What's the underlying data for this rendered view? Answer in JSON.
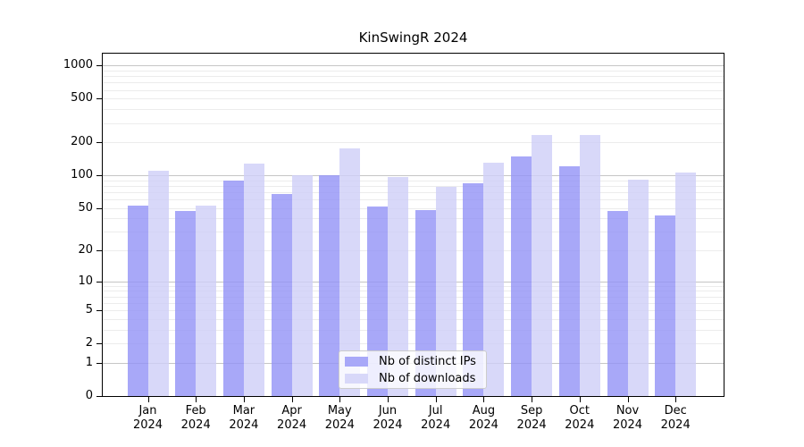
{
  "title": "KinSwingR 2024",
  "chart_data": {
    "type": "bar",
    "title": "KinSwingR 2024",
    "categories": [
      "Jan 2024",
      "Feb 2024",
      "Mar 2024",
      "Apr 2024",
      "May 2024",
      "Jun 2024",
      "Jul 2024",
      "Aug 2024",
      "Sep 2024",
      "Oct 2024",
      "Nov 2024",
      "Dec 2024"
    ],
    "months": [
      "Jan",
      "Feb",
      "Mar",
      "Apr",
      "May",
      "Jun",
      "Jul",
      "Aug",
      "Sep",
      "Oct",
      "Nov",
      "Dec"
    ],
    "year": "2024",
    "series": [
      {
        "name": "Nb of distinct IPs",
        "color": "#a8a8f8",
        "values": [
          53,
          47,
          89,
          68,
          100,
          52,
          48,
          84,
          149,
          122,
          47,
          43
        ]
      },
      {
        "name": "Nb of downloads",
        "color": "#d8d8f9",
        "values": [
          110,
          53,
          128,
          100,
          175,
          97,
          78,
          131,
          235,
          235,
          92,
          106
        ]
      }
    ],
    "y_axis": {
      "scale": "log10(value+1)",
      "tick_values": [
        0,
        1,
        2,
        5,
        10,
        20,
        50,
        100,
        200,
        500,
        1000
      ],
      "major_grid_values": [
        1,
        10,
        100,
        1000
      ],
      "range": [
        0,
        1000
      ]
    },
    "x_axis": {
      "tick_label_format": "month over year, two lines"
    },
    "legend": {
      "position": "lower center",
      "entries": [
        "Nb of distinct IPs",
        "Nb of downloads"
      ]
    },
    "grid": "horizontal major and minor, no vertical"
  },
  "colors": {
    "bar_distinct_ips": "#a8a8f8",
    "bar_downloads": "#d8d8f9",
    "grid_major": "#c6c6c6",
    "grid_minor": "#ececec",
    "frame": "#000000",
    "legend_border": "#cccccc",
    "legend_background": "rgba(255,255,255,0.8)",
    "text": "#000000"
  }
}
